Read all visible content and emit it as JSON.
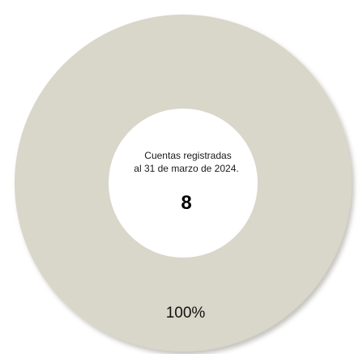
{
  "chart_data": {
    "type": "pie",
    "subtype": "donut",
    "categories": [
      "Cuentas registradas"
    ],
    "values": [
      100
    ],
    "data_labels": [
      "100%"
    ],
    "center_text": {
      "line1": "Cuentas registradas",
      "line2": "al 31 de marzo de 2024.",
      "value": "8"
    },
    "colors": {
      "slice": "#d9d6ca",
      "slice_shadow": "#b9b7ad",
      "hole": "#ffffff"
    },
    "legend": "none",
    "title": ""
  }
}
